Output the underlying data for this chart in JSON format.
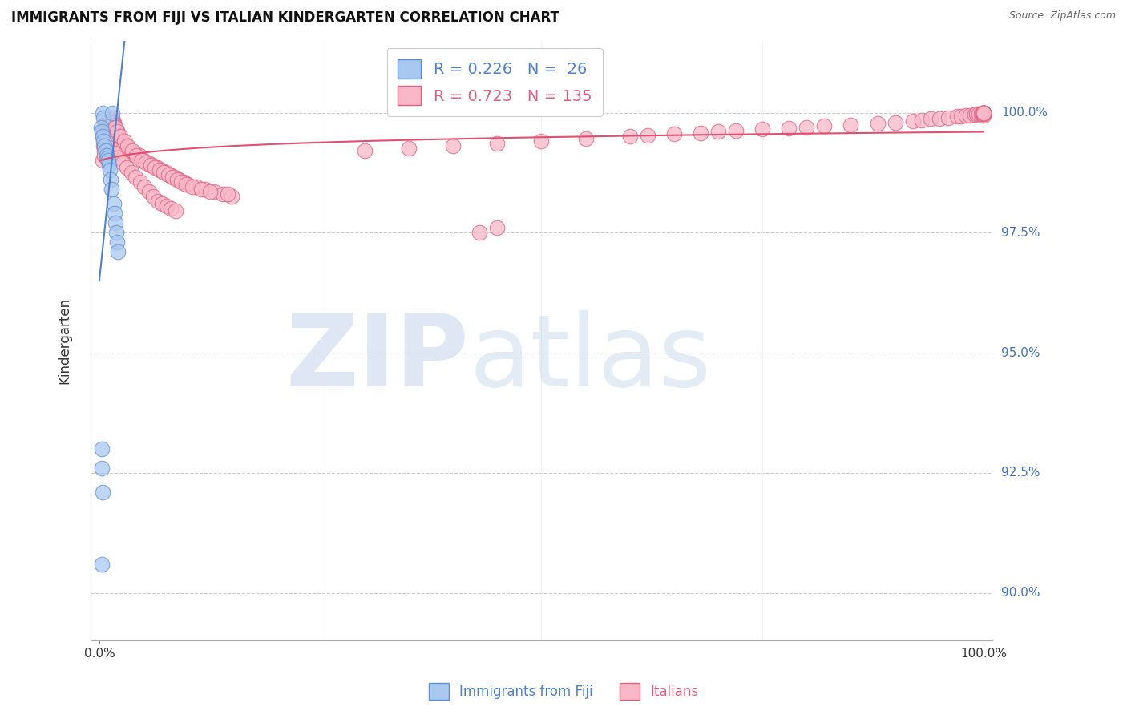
{
  "title": "IMMIGRANTS FROM FIJI VS ITALIAN KINDERGARTEN CORRELATION CHART",
  "source": "Source: ZipAtlas.com",
  "ylabel": "Kindergarten",
  "fiji_color": "#a8c8f0",
  "fiji_edge_color": "#6090d0",
  "italian_color": "#f8b8c8",
  "italian_edge_color": "#e06080",
  "fiji_line_color": "#5080d0",
  "italian_line_color": "#e05070",
  "fiji_R": 0.226,
  "fiji_N": 26,
  "italian_R": 0.723,
  "italian_N": 135,
  "ytick_color": "#4472c4",
  "fiji_x": [
    0.4,
    0.5,
    1.5,
    0.2,
    0.3,
    0.4,
    0.5,
    0.6,
    0.7,
    0.8,
    0.9,
    1.0,
    1.1,
    1.2,
    1.3,
    1.4,
    1.6,
    1.7,
    1.8,
    1.9,
    2.0,
    2.1,
    0.3,
    0.3,
    0.4,
    0.3
  ],
  "fiji_y": [
    100.0,
    99.9,
    100.0,
    99.7,
    99.6,
    99.5,
    99.4,
    99.3,
    99.2,
    99.1,
    99.05,
    99.0,
    98.9,
    98.8,
    98.6,
    98.4,
    98.1,
    97.9,
    97.7,
    97.5,
    97.3,
    97.1,
    93.0,
    92.6,
    92.1,
    90.6
  ],
  "ital_x_low": [
    0.4,
    0.5,
    0.6,
    0.7,
    0.8,
    0.9,
    1.0,
    1.1,
    1.2,
    1.3,
    1.4,
    1.5,
    1.6,
    1.7,
    1.8,
    1.9,
    2.0,
    2.1,
    2.2,
    2.3,
    2.5,
    2.7,
    3.0,
    3.5,
    4.0,
    4.5,
    5.0,
    5.5,
    6.0,
    6.5,
    7.0,
    7.5,
    8.0,
    8.5,
    9.0,
    9.5,
    10.0,
    11.0,
    12.0,
    13.0,
    14.0,
    15.0,
    0.5,
    0.6,
    0.8,
    1.0,
    1.2,
    1.5,
    1.8,
    2.0,
    2.4,
    2.8,
    3.2,
    3.7,
    4.2,
    4.8,
    5.3,
    5.8,
    6.3,
    6.8,
    7.3,
    7.8,
    8.3,
    8.8,
    9.3,
    9.8,
    10.5,
    11.5,
    12.5,
    14.5,
    0.4,
    0.6,
    0.9,
    1.1,
    1.4,
    1.7,
    2.1,
    2.6,
    3.1,
    3.6,
    4.1,
    4.6,
    5.1,
    5.6,
    6.1,
    6.6,
    7.1,
    7.6,
    8.1,
    8.6
  ],
  "ital_y_low": [
    99.5,
    99.6,
    99.7,
    99.65,
    99.75,
    99.8,
    99.85,
    99.7,
    99.75,
    99.8,
    99.85,
    99.9,
    99.8,
    99.75,
    99.7,
    99.65,
    99.6,
    99.55,
    99.5,
    99.45,
    99.4,
    99.35,
    99.3,
    99.2,
    99.15,
    99.1,
    99.0,
    98.95,
    98.9,
    98.85,
    98.8,
    98.75,
    98.7,
    98.65,
    98.6,
    98.55,
    98.5,
    98.45,
    98.4,
    98.35,
    98.3,
    98.25,
    99.3,
    99.2,
    99.4,
    99.6,
    99.5,
    99.8,
    99.7,
    99.6,
    99.5,
    99.4,
    99.3,
    99.2,
    99.1,
    99.0,
    98.95,
    98.9,
    98.85,
    98.8,
    98.75,
    98.7,
    98.65,
    98.6,
    98.55,
    98.5,
    98.45,
    98.4,
    98.35,
    98.3,
    99.0,
    99.1,
    99.2,
    99.3,
    99.25,
    99.15,
    99.05,
    98.95,
    98.85,
    98.75,
    98.65,
    98.55,
    98.45,
    98.35,
    98.25,
    98.15,
    98.1,
    98.05,
    98.0,
    97.95
  ],
  "ital_x_high": [
    30.0,
    35.0,
    40.0,
    43.0,
    45.0,
    50.0,
    55.0,
    60.0,
    62.0,
    65.0,
    68.0,
    70.0,
    72.0,
    75.0,
    78.0,
    80.0,
    82.0,
    85.0,
    88.0,
    90.0,
    92.0,
    93.0,
    94.0,
    95.0,
    96.0,
    97.0,
    97.5,
    98.0,
    98.5,
    99.0,
    99.2,
    99.5,
    99.7,
    99.8,
    99.9,
    100.0,
    100.0,
    100.0,
    100.0,
    100.0,
    100.0,
    100.0,
    100.0,
    100.0,
    45.0
  ],
  "ital_y_high": [
    99.2,
    99.25,
    99.3,
    97.5,
    99.35,
    99.4,
    99.45,
    99.5,
    99.52,
    99.55,
    99.58,
    99.6,
    99.62,
    99.65,
    99.68,
    99.7,
    99.72,
    99.75,
    99.78,
    99.8,
    99.82,
    99.85,
    99.87,
    99.88,
    99.9,
    99.92,
    99.93,
    99.94,
    99.95,
    99.96,
    99.97,
    99.97,
    99.98,
    99.98,
    99.99,
    100.0,
    100.0,
    100.0,
    99.95,
    99.98,
    100.0,
    99.97,
    99.99,
    100.0,
    97.6
  ]
}
